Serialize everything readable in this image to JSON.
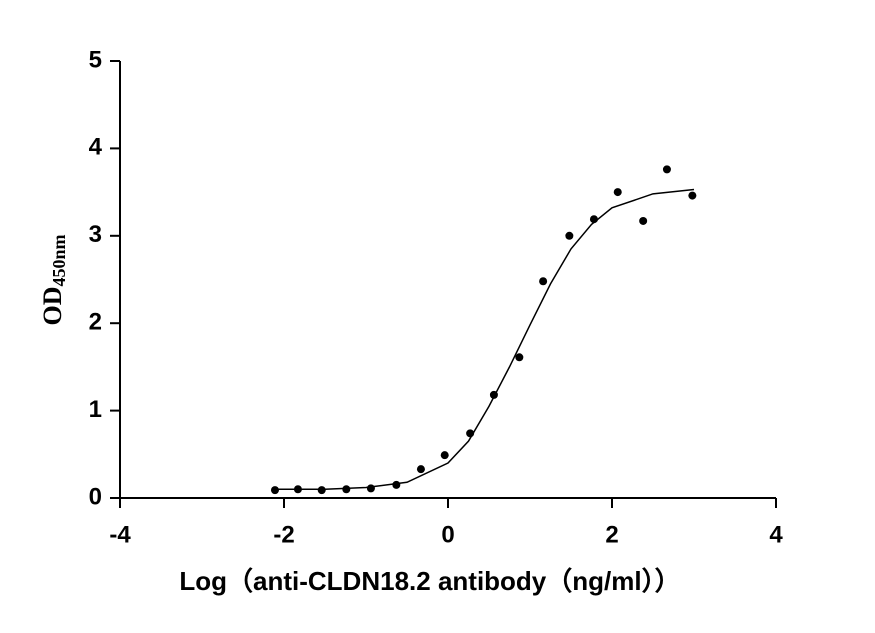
{
  "chart_data": {
    "type": "scatter",
    "xlabel": "Log（anti-CLDN18.2 antibody（ng/ml））",
    "ylabel": "OD",
    "ylabel_sub": "450nm",
    "xlim": [
      -4,
      4
    ],
    "ylim": [
      0,
      5
    ],
    "xticks": [
      -4,
      -2,
      0,
      2,
      4
    ],
    "yticks": [
      0,
      1,
      2,
      3,
      4,
      5
    ],
    "color": "#000000",
    "x": [
      -2.11,
      -1.83,
      -1.54,
      -1.24,
      -0.94,
      -0.63,
      -0.33,
      -0.04,
      0.27,
      0.56,
      0.87,
      1.16,
      1.48,
      1.78,
      2.07,
      2.38,
      2.67,
      2.98
    ],
    "values": [
      0.09,
      0.1,
      0.09,
      0.1,
      0.11,
      0.15,
      0.33,
      0.49,
      0.74,
      1.18,
      1.61,
      2.48,
      3.0,
      3.19,
      3.5,
      3.17,
      3.76,
      3.46
    ],
    "fit": {
      "x": [
        -2.1,
        -1.5,
        -1,
        -0.5,
        0,
        0.25,
        0.5,
        0.75,
        1,
        1.25,
        1.5,
        1.75,
        2,
        2.5,
        3
      ],
      "values": [
        0.1,
        0.1,
        0.12,
        0.18,
        0.4,
        0.65,
        1.05,
        1.5,
        1.98,
        2.45,
        2.85,
        3.13,
        3.32,
        3.48,
        3.53
      ]
    }
  }
}
